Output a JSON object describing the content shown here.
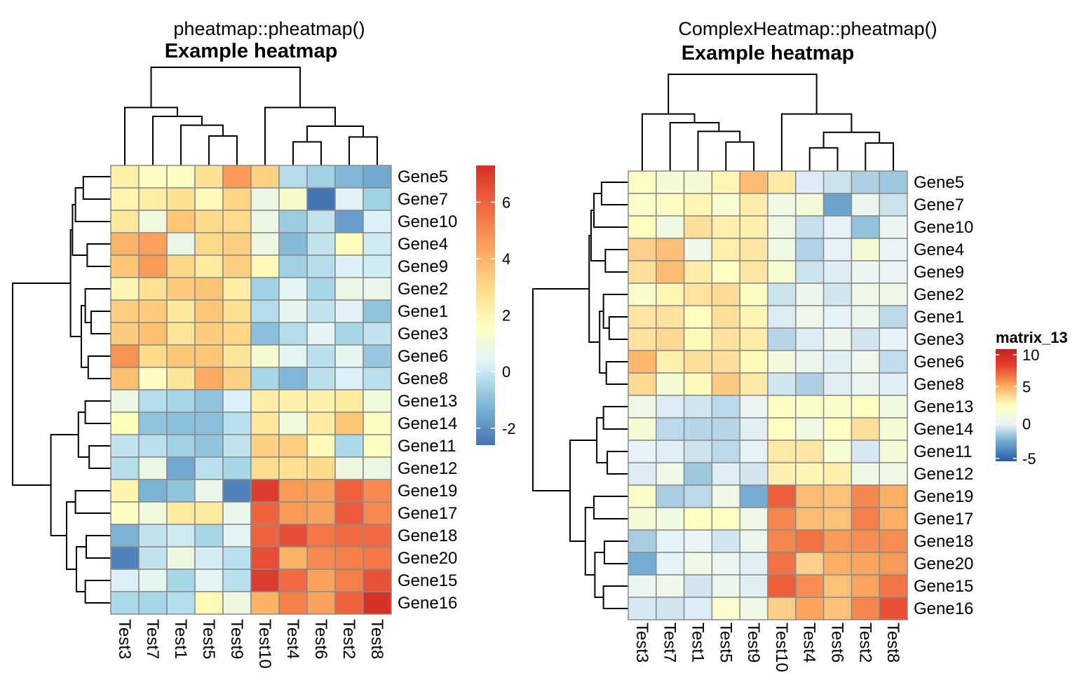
{
  "chart_data": [
    {
      "type": "heatmap",
      "package_title": "pheatmap::pheatmap()",
      "title": "Example heatmap",
      "columns": [
        "Test3",
        "Test7",
        "Test1",
        "Test5",
        "Test9",
        "Test10",
        "Test4",
        "Test6",
        "Test2",
        "Test8"
      ],
      "rows": [
        "Gene5",
        "Gene7",
        "Gene10",
        "Gene4",
        "Gene9",
        "Gene2",
        "Gene1",
        "Gene3",
        "Gene6",
        "Gene8",
        "Gene13",
        "Gene14",
        "Gene11",
        "Gene12",
        "Gene19",
        "Gene17",
        "Gene18",
        "Gene20",
        "Gene15",
        "Gene16"
      ],
      "values": [
        [
          2.2,
          1.5,
          1.5,
          2.8,
          4.6,
          3.2,
          -0.3,
          -0.6,
          -1.2,
          -1.5
        ],
        [
          2.0,
          2.3,
          2.8,
          1.7,
          3.1,
          0.8,
          1.3,
          -2.6,
          0.4,
          -0.6
        ],
        [
          2.5,
          1.0,
          3.5,
          3.0,
          3.0,
          0.8,
          -0.7,
          -0.1,
          -1.7,
          0.3
        ],
        [
          4.0,
          4.5,
          0.7,
          3.0,
          3.3,
          0.9,
          -1.1,
          -0.1,
          1.6,
          0.1
        ],
        [
          3.5,
          4.6,
          3.1,
          2.4,
          3.3,
          1.7,
          -0.6,
          -0.3,
          0.3,
          0.1
        ],
        [
          1.9,
          2.8,
          3.4,
          3.6,
          2.3,
          -0.6,
          0.5,
          -0.5,
          0.8,
          0.7
        ],
        [
          3.3,
          3.4,
          2.5,
          3.5,
          2.8,
          -0.3,
          0.6,
          -0.1,
          0.4,
          -0.9
        ],
        [
          3.4,
          3.7,
          2.6,
          3.4,
          3.1,
          -1.0,
          -0.3,
          0.5,
          -0.5,
          -0.1
        ],
        [
          4.8,
          3.0,
          3.5,
          3.5,
          2.6,
          1.2,
          0.5,
          -0.2,
          0.6,
          -0.8
        ],
        [
          3.7,
          1.5,
          2.6,
          4.2,
          3.2,
          -0.5,
          -1.2,
          -0.2,
          0.3,
          -0.2
        ],
        [
          0.8,
          -0.3,
          -0.5,
          -0.9,
          0.3,
          2.3,
          2.1,
          2.1,
          2.4,
          1.0
        ],
        [
          1.6,
          -0.9,
          -1.0,
          -1.0,
          -0.2,
          2.5,
          1.0,
          2.4,
          3.5,
          1.5
        ],
        [
          -0.1,
          -0.2,
          -0.6,
          -0.9,
          -0.1,
          3.2,
          3.3,
          1.7,
          -0.4,
          1.5
        ],
        [
          -0.3,
          0.8,
          -1.5,
          -0.2,
          -0.5,
          2.9,
          2.8,
          3.0,
          0.9,
          0.8
        ],
        [
          2.0,
          -1.3,
          -0.9,
          0.7,
          -2.3,
          7.0,
          4.6,
          4.4,
          6.0,
          5.0
        ],
        [
          1.5,
          1.0,
          2.4,
          2.4,
          0.7,
          6.0,
          4.6,
          4.4,
          6.2,
          5.0
        ],
        [
          -1.3,
          -0.1,
          0.1,
          -0.5,
          0.5,
          6.0,
          6.5,
          5.5,
          5.8,
          5.8
        ],
        [
          -2.3,
          -0.1,
          0.9,
          0.2,
          -0.2,
          6.5,
          4.0,
          5.0,
          5.3,
          5.5
        ],
        [
          0.3,
          0.6,
          -0.5,
          0.5,
          -0.2,
          7.0,
          5.8,
          4.4,
          5.3,
          6.4
        ],
        [
          -0.4,
          -0.5,
          -0.3,
          1.8,
          0.9,
          4.0,
          5.3,
          4.4,
          6.0,
          7.3
        ]
      ],
      "legend": {
        "ticks": [
          6,
          4,
          2,
          0,
          -2
        ],
        "range": [
          -2.6,
          7.3
        ]
      }
    },
    {
      "type": "heatmap",
      "package_title": "ComplexHeatmap::pheatmap()",
      "title": "Example heatmap",
      "columns": [
        "Test3",
        "Test7",
        "Test1",
        "Test5",
        "Test9",
        "Test10",
        "Test4",
        "Test6",
        "Test2",
        "Test8"
      ],
      "rows": [
        "Gene5",
        "Gene7",
        "Gene10",
        "Gene4",
        "Gene9",
        "Gene2",
        "Gene1",
        "Gene3",
        "Gene6",
        "Gene8",
        "Gene13",
        "Gene14",
        "Gene11",
        "Gene12",
        "Gene19",
        "Gene17",
        "Gene18",
        "Gene20",
        "Gene15",
        "Gene16"
      ],
      "legend": {
        "title": "matrix_13",
        "ticks": [
          10,
          5,
          0,
          -5
        ],
        "range": [
          -5,
          10
        ]
      }
    }
  ]
}
